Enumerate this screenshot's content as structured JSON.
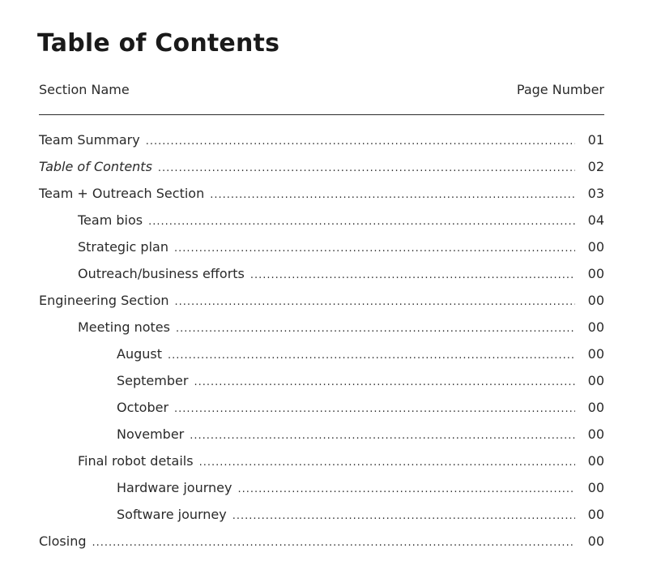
{
  "title": "Table of Contents",
  "header": {
    "left": "Section Name",
    "right": "Page Number"
  },
  "entries": [
    {
      "label": "Team Summary",
      "page": "01",
      "level": 0,
      "italic": false
    },
    {
      "label": "Table of Contents",
      "page": "02",
      "level": 0,
      "italic": true
    },
    {
      "label": "Team + Outreach Section",
      "page": "03",
      "level": 0,
      "italic": false
    },
    {
      "label": "Team bios",
      "page": "04",
      "level": 1,
      "italic": false
    },
    {
      "label": "Strategic plan",
      "page": "00",
      "level": 1,
      "italic": false
    },
    {
      "label": "Outreach/business efforts",
      "page": "00",
      "level": 1,
      "italic": false
    },
    {
      "label": "Engineering Section",
      "page": "00",
      "level": 0,
      "italic": false
    },
    {
      "label": "Meeting notes",
      "page": "00",
      "level": 1,
      "italic": false
    },
    {
      "label": "August",
      "page": "00",
      "level": 2,
      "italic": false
    },
    {
      "label": "September",
      "page": "00",
      "level": 2,
      "italic": false
    },
    {
      "label": "October",
      "page": "00",
      "level": 2,
      "italic": false
    },
    {
      "label": "November",
      "page": "00",
      "level": 2,
      "italic": false
    },
    {
      "label": "Final robot details",
      "page": "00",
      "level": 1,
      "italic": false
    },
    {
      "label": "Hardware journey",
      "page": "00",
      "level": 2,
      "italic": false
    },
    {
      "label": "Software journey",
      "page": "00",
      "level": 2,
      "italic": false
    },
    {
      "label": "Closing",
      "page": "00",
      "level": 0,
      "italic": false
    }
  ]
}
